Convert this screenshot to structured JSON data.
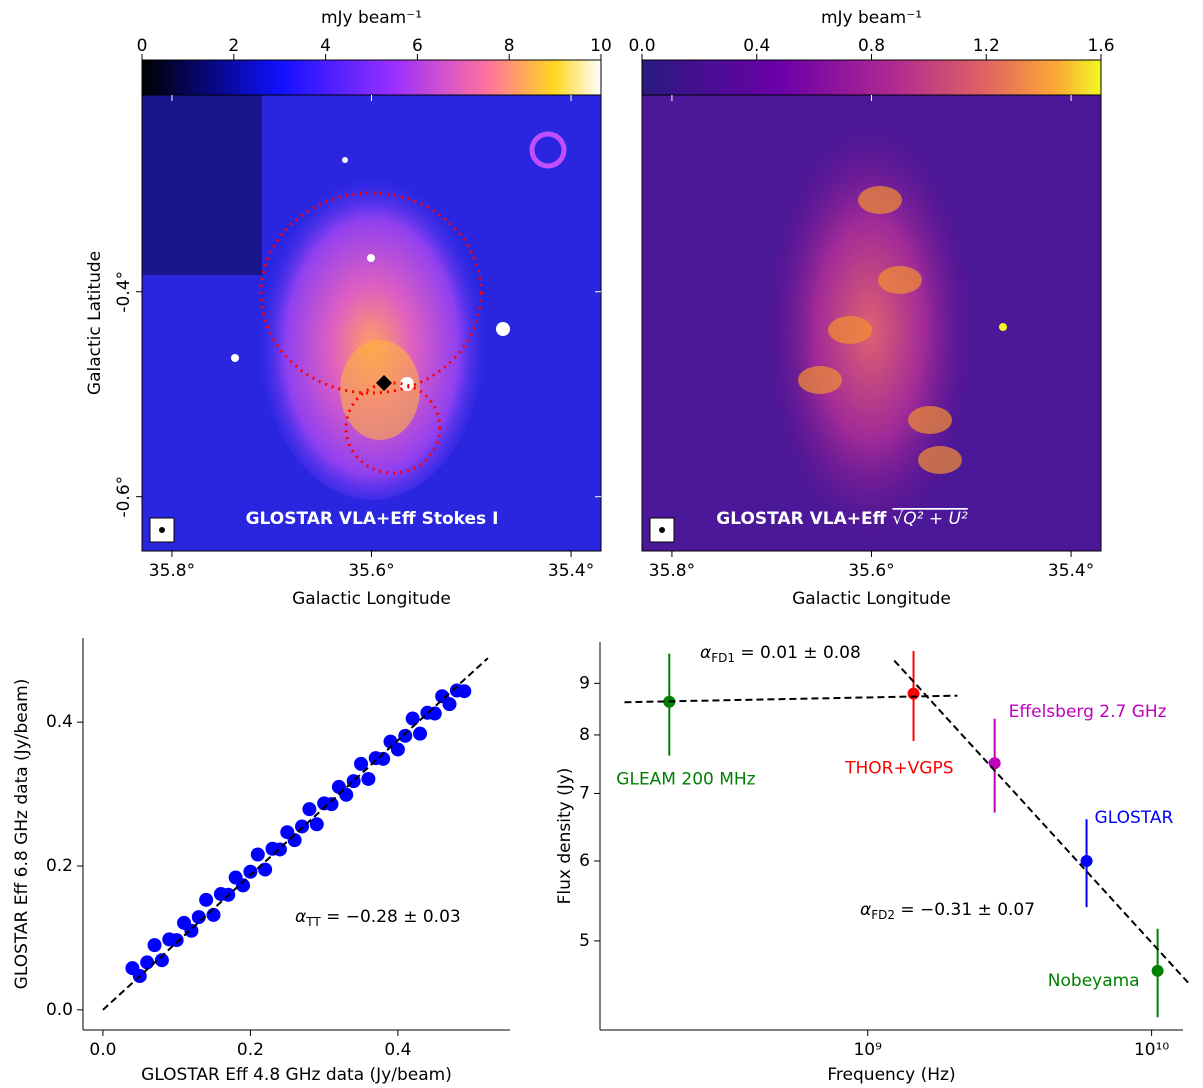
{
  "chart_data": [
    {
      "type": "image",
      "colormap": "gnuplot2",
      "colorbar_label": "mJy beam⁻¹",
      "colorbar_lim": [
        0,
        10
      ],
      "colorbar_ticks": [
        0,
        2,
        4,
        6,
        8,
        10
      ],
      "xlabel": "Galactic Longitude",
      "ylabel": "Galactic Latitude",
      "xlim": [
        35.83,
        35.37
      ],
      "ylim": [
        -0.653,
        -0.208
      ],
      "xticks": [
        {
          "value": 35.8,
          "label": "35.8°"
        },
        {
          "value": 35.6,
          "label": "35.6°"
        },
        {
          "value": 35.4,
          "label": "35.4°"
        }
      ],
      "yticks": [
        {
          "value": -0.4,
          "label": "-0.4°"
        },
        {
          "value": -0.6,
          "label": "-0.6°"
        }
      ],
      "annotation": "GLOSTAR VLA+Eff Stokes I"
    },
    {
      "type": "image",
      "colormap": "plasma",
      "colorbar_label": "mJy beam⁻¹",
      "colorbar_lim": [
        0,
        1.6
      ],
      "colorbar_ticks": [
        {
          "value": 0,
          "label": "0.0"
        },
        0.4,
        0.8,
        1.2,
        1.6
      ],
      "xlabel": "Galactic Longitude",
      "xlim": [
        35.83,
        35.37
      ],
      "ylim": [
        -0.653,
        -0.208
      ],
      "xticks": [
        {
          "value": 35.8,
          "label": "35.8°"
        },
        {
          "value": 35.6,
          "label": "35.6°"
        },
        {
          "value": 35.4,
          "label": "35.4°"
        }
      ],
      "annotation": "GLOSTAR VLA+Eff",
      "annotation_math": "√Q² + U²"
    },
    {
      "type": "scatter",
      "xlabel": "GLOSTAR Eff 4.8 GHz data (Jy/beam)",
      "ylabel": "GLOSTAR Eff 6.8 GHz data (Jy/beam)",
      "xlim": [
        -0.027,
        0.552
      ],
      "ylim": [
        -0.028,
        0.517
      ],
      "xticks": [
        {
          "value": 0,
          "label": "0.0"
        },
        0.2,
        0.4
      ],
      "yticks": [
        {
          "value": 0,
          "label": "0.0"
        },
        0.2,
        0.4
      ],
      "color": "#0000ff",
      "x": [
        0.04,
        0.05,
        0.06,
        0.07,
        0.08,
        0.09,
        0.1,
        0.11,
        0.12,
        0.13,
        0.14,
        0.15,
        0.16,
        0.17,
        0.18,
        0.19,
        0.2,
        0.21,
        0.22,
        0.23,
        0.24,
        0.25,
        0.26,
        0.27,
        0.28,
        0.29,
        0.3,
        0.31,
        0.32,
        0.33,
        0.34,
        0.35,
        0.36,
        0.37,
        0.38,
        0.39,
        0.4,
        0.41,
        0.42,
        0.43,
        0.44,
        0.45,
        0.46,
        0.47,
        0.48,
        0.49
      ],
      "values": [
        0.058,
        0.047,
        0.066,
        0.09,
        0.069,
        0.098,
        0.097,
        0.121,
        0.11,
        0.129,
        0.153,
        0.132,
        0.161,
        0.16,
        0.184,
        0.173,
        0.192,
        0.216,
        0.195,
        0.224,
        0.223,
        0.247,
        0.236,
        0.255,
        0.279,
        0.258,
        0.287,
        0.286,
        0.31,
        0.299,
        0.318,
        0.342,
        0.321,
        0.35,
        0.349,
        0.373,
        0.362,
        0.381,
        0.405,
        0.384,
        0.413,
        0.412,
        0.436,
        0.425,
        0.444,
        0.443
      ],
      "fit": {
        "x": [
          0,
          0.522
        ],
        "values": [
          0,
          0.489
        ]
      },
      "annotation": {
        "symbol": "α",
        "subscript": "TT",
        "text": " = −0.28 ± 0.03"
      }
    },
    {
      "type": "errorbar",
      "log_x": true,
      "log_y": true,
      "xlabel": "Frequency (Hz)",
      "ylabel": "Flux density (Jy)",
      "xlim": [
        114000000.0,
        12900000000.0
      ],
      "ylim": [
        4.08,
        9.89
      ],
      "xticks": [
        {
          "value": 1000000000.0,
          "label": "10⁹"
        },
        {
          "value": 10000000000.0,
          "label": "10¹⁰"
        }
      ],
      "yticks": [
        5,
        6,
        7,
        8,
        9
      ],
      "series": [
        {
          "name": "GLEAM 200 MHz",
          "color": "#008000",
          "x": [
            200000000.0
          ],
          "values": [
            8.63
          ],
          "errors": [
            1.0
          ]
        },
        {
          "name": "THOR+VGPS",
          "color": "#ff0000",
          "x": [
            1450000000.0
          ],
          "values": [
            8.79
          ],
          "errors": [
            0.9
          ]
        },
        {
          "name": "Effelsberg 2.7 GHz",
          "color": "#bf00bf",
          "x": [
            2800000000.0
          ],
          "values": [
            7.5
          ],
          "errors": [
            0.8
          ]
        },
        {
          "name": "GLOSTAR",
          "color": "#0000ff",
          "x": [
            5900000000.0
          ],
          "values": [
            6.0
          ],
          "errors": [
            0.6
          ]
        },
        {
          "name": "Nobeyama",
          "color": "#008000",
          "x": [
            10500000000.0
          ],
          "values": [
            4.67
          ],
          "errors": [
            0.47
          ]
        }
      ],
      "fits": [
        {
          "x": [
            139000000.0,
            2070000000.0
          ],
          "values": [
            8.62,
            8.75
          ],
          "symbol": "α",
          "subscript": "FD1",
          "text": " = 0.01 ± 0.08"
        },
        {
          "x": [
            1240000000.0,
            13600000000.0
          ],
          "values": [
            9.48,
            4.53
          ],
          "symbol": "α",
          "subscript": "FD2",
          "text": " = −0.31 ± 0.07"
        }
      ]
    }
  ]
}
